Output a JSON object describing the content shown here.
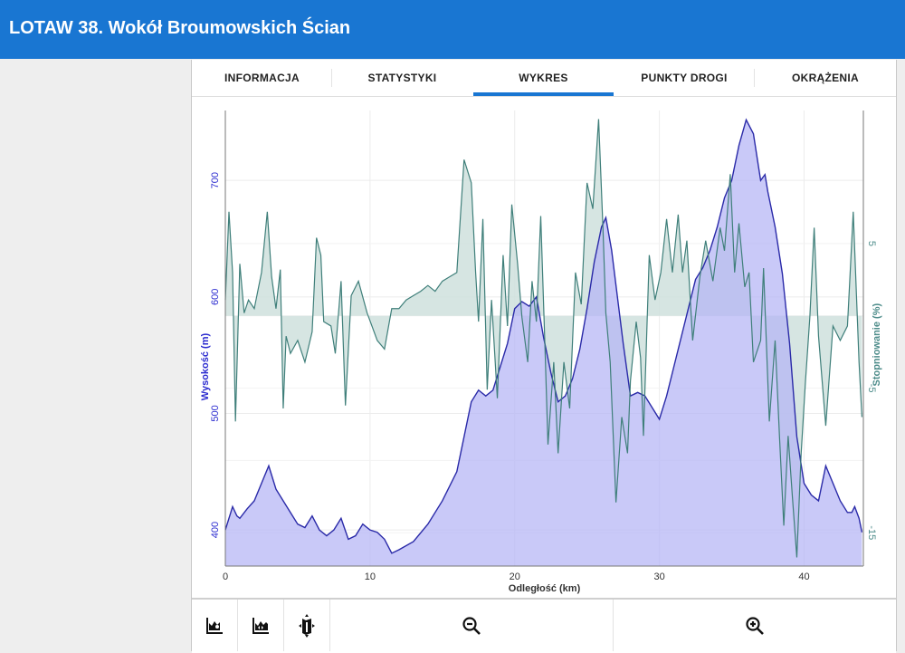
{
  "header": {
    "title": "LOTAW 38. Wokół Broumowskich Ścian"
  },
  "tabs": [
    {
      "label": "INFORMACJA",
      "active": false
    },
    {
      "label": "STATYSTYKI",
      "active": false
    },
    {
      "label": "WYKRES",
      "active": true
    },
    {
      "label": "PUNKTY DROGI",
      "active": false
    },
    {
      "label": "OKRĄŻENIA",
      "active": false
    }
  ],
  "toolbar": {
    "buttons": [
      "elevation-options-icon",
      "elevation-range-icon",
      "map-icon",
      "zoom-out-icon",
      "zoom-in-icon"
    ]
  },
  "colors": {
    "accent": "#1976d2",
    "elevation_fill": "#c6c6f7",
    "elevation_line": "#2a2aa8",
    "gradient_line": "#3f7f7a",
    "gradient_fill": "#cfe1dd",
    "left_axis": "#2b2bcf",
    "right_axis": "#4d8c8a"
  },
  "chart_data": {
    "type": "area",
    "xlabel": "Odległość (km)",
    "ylabel": "Wysokość (m)",
    "y2label": "Stopniowanie (%)",
    "xlim": [
      0,
      44.1
    ],
    "ylim": [
      369,
      760
    ],
    "y2lim": [
      -17.3,
      14.2
    ],
    "x_ticks": [
      "0",
      "10",
      "20",
      "30",
      "40"
    ],
    "y_ticks": [
      "400",
      "500",
      "600",
      "700"
    ],
    "y2_ticks": [
      "5",
      "-5",
      "-15"
    ],
    "grid": true,
    "series": [
      {
        "name": "Wysokość (m)",
        "axis": "left",
        "points": [
          [
            0,
            400
          ],
          [
            0.5,
            420
          ],
          [
            0.8,
            412
          ],
          [
            1,
            410
          ],
          [
            1.5,
            418
          ],
          [
            2,
            425
          ],
          [
            2.5,
            440
          ],
          [
            3,
            455
          ],
          [
            3.5,
            435
          ],
          [
            4,
            425
          ],
          [
            4.5,
            415
          ],
          [
            5,
            405
          ],
          [
            5.5,
            402
          ],
          [
            6,
            412
          ],
          [
            6.5,
            400
          ],
          [
            7,
            395
          ],
          [
            7.5,
            400
          ],
          [
            8,
            410
          ],
          [
            8.5,
            392
          ],
          [
            9,
            395
          ],
          [
            9.5,
            405
          ],
          [
            10,
            400
          ],
          [
            10.5,
            398
          ],
          [
            11,
            392
          ],
          [
            11.5,
            380
          ],
          [
            12,
            383
          ],
          [
            13,
            390
          ],
          [
            14,
            405
          ],
          [
            15,
            425
          ],
          [
            16,
            450
          ],
          [
            16.5,
            480
          ],
          [
            17,
            510
          ],
          [
            17.5,
            520
          ],
          [
            18,
            515
          ],
          [
            18.5,
            520
          ],
          [
            19,
            540
          ],
          [
            19.5,
            560
          ],
          [
            20,
            590
          ],
          [
            20.5,
            596
          ],
          [
            21,
            592
          ],
          [
            21.5,
            600
          ],
          [
            22,
            565
          ],
          [
            22.5,
            535
          ],
          [
            23,
            510
          ],
          [
            23.5,
            515
          ],
          [
            24,
            530
          ],
          [
            24.5,
            555
          ],
          [
            25,
            590
          ],
          [
            25.5,
            630
          ],
          [
            26,
            660
          ],
          [
            26.3,
            668
          ],
          [
            26.7,
            640
          ],
          [
            27,
            610
          ],
          [
            27.5,
            560
          ],
          [
            28,
            515
          ],
          [
            28.5,
            518
          ],
          [
            29,
            515
          ],
          [
            29.5,
            505
          ],
          [
            30,
            495
          ],
          [
            30.5,
            515
          ],
          [
            31,
            540
          ],
          [
            31.5,
            565
          ],
          [
            32,
            590
          ],
          [
            32.5,
            615
          ],
          [
            33,
            625
          ],
          [
            33.5,
            640
          ],
          [
            34,
            660
          ],
          [
            34.5,
            685
          ],
          [
            35,
            700
          ],
          [
            35.5,
            730
          ],
          [
            36,
            752
          ],
          [
            36.5,
            740
          ],
          [
            37,
            700
          ],
          [
            37.3,
            705
          ],
          [
            37.5,
            690
          ],
          [
            38,
            660
          ],
          [
            38.5,
            620
          ],
          [
            39,
            560
          ],
          [
            39.5,
            480
          ],
          [
            40,
            440
          ],
          [
            40.5,
            430
          ],
          [
            41,
            425
          ],
          [
            41.5,
            455
          ],
          [
            42,
            440
          ],
          [
            42.5,
            425
          ],
          [
            43,
            415
          ],
          [
            43.3,
            415
          ],
          [
            43.5,
            420
          ],
          [
            43.8,
            410
          ],
          [
            44,
            398
          ]
        ]
      },
      {
        "name": "Stopniowanie (%)",
        "axis": "right",
        "points": [
          [
            0,
            1.1
          ],
          [
            0.25,
            7.2
          ],
          [
            0.5,
            3
          ],
          [
            0.7,
            -7.3
          ],
          [
            1,
            3.6
          ],
          [
            1.3,
            0.2
          ],
          [
            1.6,
            1.1
          ],
          [
            2,
            0.5
          ],
          [
            2.5,
            3
          ],
          [
            2.9,
            7.2
          ],
          [
            3.2,
            2.7
          ],
          [
            3.5,
            0.5
          ],
          [
            3.8,
            3.2
          ],
          [
            4,
            -6.4
          ],
          [
            4.2,
            -1.4
          ],
          [
            4.5,
            -2.6
          ],
          [
            5,
            -1.7
          ],
          [
            5.5,
            -3.2
          ],
          [
            6,
            -1.1
          ],
          [
            6.3,
            5.4
          ],
          [
            6.6,
            4.2
          ],
          [
            6.8,
            -0.4
          ],
          [
            7.3,
            -0.7
          ],
          [
            7.6,
            -2.6
          ],
          [
            8,
            2.4
          ],
          [
            8.3,
            -6.2
          ],
          [
            8.7,
            1.4
          ],
          [
            9.2,
            2.4
          ],
          [
            9.8,
            0.2
          ],
          [
            10.5,
            -1.7
          ],
          [
            11,
            -2.3
          ],
          [
            11.5,
            0.5
          ],
          [
            12,
            0.5
          ],
          [
            12.5,
            1.1
          ],
          [
            13,
            1.4
          ],
          [
            13.5,
            1.7
          ],
          [
            14,
            2.1
          ],
          [
            14.5,
            1.7
          ],
          [
            15,
            2.4
          ],
          [
            15.5,
            2.7
          ],
          [
            16,
            3
          ],
          [
            16.5,
            10.8
          ],
          [
            17,
            9.2
          ],
          [
            17.3,
            3
          ],
          [
            17.5,
            -0.4
          ],
          [
            17.8,
            6.7
          ],
          [
            18.1,
            -5.1
          ],
          [
            18.4,
            1.1
          ],
          [
            18.8,
            -5.7
          ],
          [
            19.2,
            4.2
          ],
          [
            19.5,
            -0.7
          ],
          [
            19.8,
            7.7
          ],
          [
            20.2,
            3.6
          ],
          [
            20.5,
            -0.1
          ],
          [
            20.9,
            -3.2
          ],
          [
            21.2,
            2.4
          ],
          [
            21.5,
            -0.4
          ],
          [
            21.8,
            6.9
          ],
          [
            22.1,
            -2.4
          ],
          [
            22.3,
            -8.9
          ],
          [
            22.7,
            -3.2
          ],
          [
            23,
            -9.5
          ],
          [
            23.4,
            -3.2
          ],
          [
            23.8,
            -6.4
          ],
          [
            24.2,
            3
          ],
          [
            24.6,
            0.8
          ],
          [
            25,
            9.2
          ],
          [
            25.4,
            7.4
          ],
          [
            25.8,
            13.6
          ],
          [
            26.1,
            6.1
          ],
          [
            26.3,
            0.2
          ],
          [
            26.6,
            -3.2
          ],
          [
            27,
            -12.9
          ],
          [
            27.4,
            -7
          ],
          [
            27.8,
            -9.5
          ],
          [
            28,
            -4.5
          ],
          [
            28.4,
            -0.4
          ],
          [
            28.7,
            -2.9
          ],
          [
            28.9,
            -8.3
          ],
          [
            29.3,
            4.2
          ],
          [
            29.7,
            1.1
          ],
          [
            30.1,
            3
          ],
          [
            30.5,
            6.7
          ],
          [
            30.9,
            3
          ],
          [
            31.3,
            7
          ],
          [
            31.6,
            3
          ],
          [
            31.9,
            5.2
          ],
          [
            32.3,
            -1.7
          ],
          [
            32.8,
            2.7
          ],
          [
            33.2,
            5.2
          ],
          [
            33.7,
            2.4
          ],
          [
            34.2,
            6.1
          ],
          [
            34.5,
            4.5
          ],
          [
            34.9,
            9.8
          ],
          [
            35.2,
            3
          ],
          [
            35.5,
            6.4
          ],
          [
            35.9,
            2
          ],
          [
            36.2,
            3
          ],
          [
            36.5,
            -3.2
          ],
          [
            37,
            -1.7
          ],
          [
            37.2,
            3.3
          ],
          [
            37.6,
            -7.3
          ],
          [
            38,
            -1.7
          ],
          [
            38.3,
            -8.3
          ],
          [
            38.6,
            -14.5
          ],
          [
            38.9,
            -8.3
          ],
          [
            39.2,
            -12.6
          ],
          [
            39.5,
            -16.7
          ],
          [
            39.8,
            -9.5
          ],
          [
            40.1,
            -4.5
          ],
          [
            40.4,
            -0.1
          ],
          [
            40.7,
            6.1
          ],
          [
            41,
            -1.4
          ],
          [
            41.5,
            -7.6
          ],
          [
            42,
            -0.7
          ],
          [
            42.5,
            -1.7
          ],
          [
            43,
            -0.7
          ],
          [
            43.4,
            7.2
          ],
          [
            43.8,
            -3.2
          ],
          [
            44,
            -7
          ]
        ]
      }
    ]
  }
}
